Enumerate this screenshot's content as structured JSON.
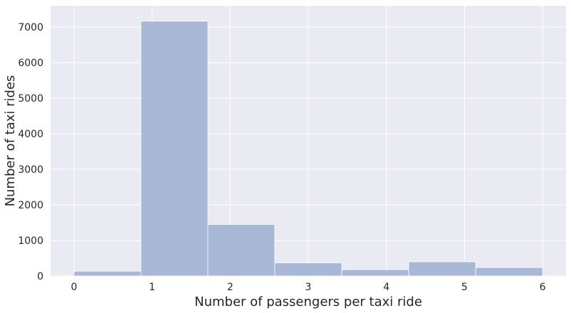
{
  "chart_data": {
    "type": "bar",
    "title": "",
    "xlabel": "Number of passengers per taxi ride",
    "ylabel": "Number of taxi rides",
    "bins": [
      {
        "x0": 0.0,
        "x1": 0.857,
        "value": 135
      },
      {
        "x0": 0.857,
        "x1": 1.714,
        "value": 7165
      },
      {
        "x0": 1.714,
        "x1": 2.571,
        "value": 1450
      },
      {
        "x0": 2.571,
        "x1": 3.429,
        "value": 370
      },
      {
        "x0": 3.429,
        "x1": 4.286,
        "value": 180
      },
      {
        "x0": 4.286,
        "x1": 5.143,
        "value": 400
      },
      {
        "x0": 5.143,
        "x1": 6.0,
        "value": 240
      }
    ],
    "xlim": [
      -0.3,
      6.3
    ],
    "ylim": [
      0,
      7600
    ],
    "x_ticks": [
      "0",
      "1",
      "2",
      "3",
      "4",
      "5",
      "6"
    ],
    "y_ticks": [
      "0",
      "1000",
      "2000",
      "3000",
      "4000",
      "5000",
      "6000",
      "7000"
    ],
    "grid": true,
    "colors": {
      "background": "#eaeaf2",
      "grid": "#ffffff",
      "bar": "#a9b8d6",
      "text": "#262626"
    }
  }
}
